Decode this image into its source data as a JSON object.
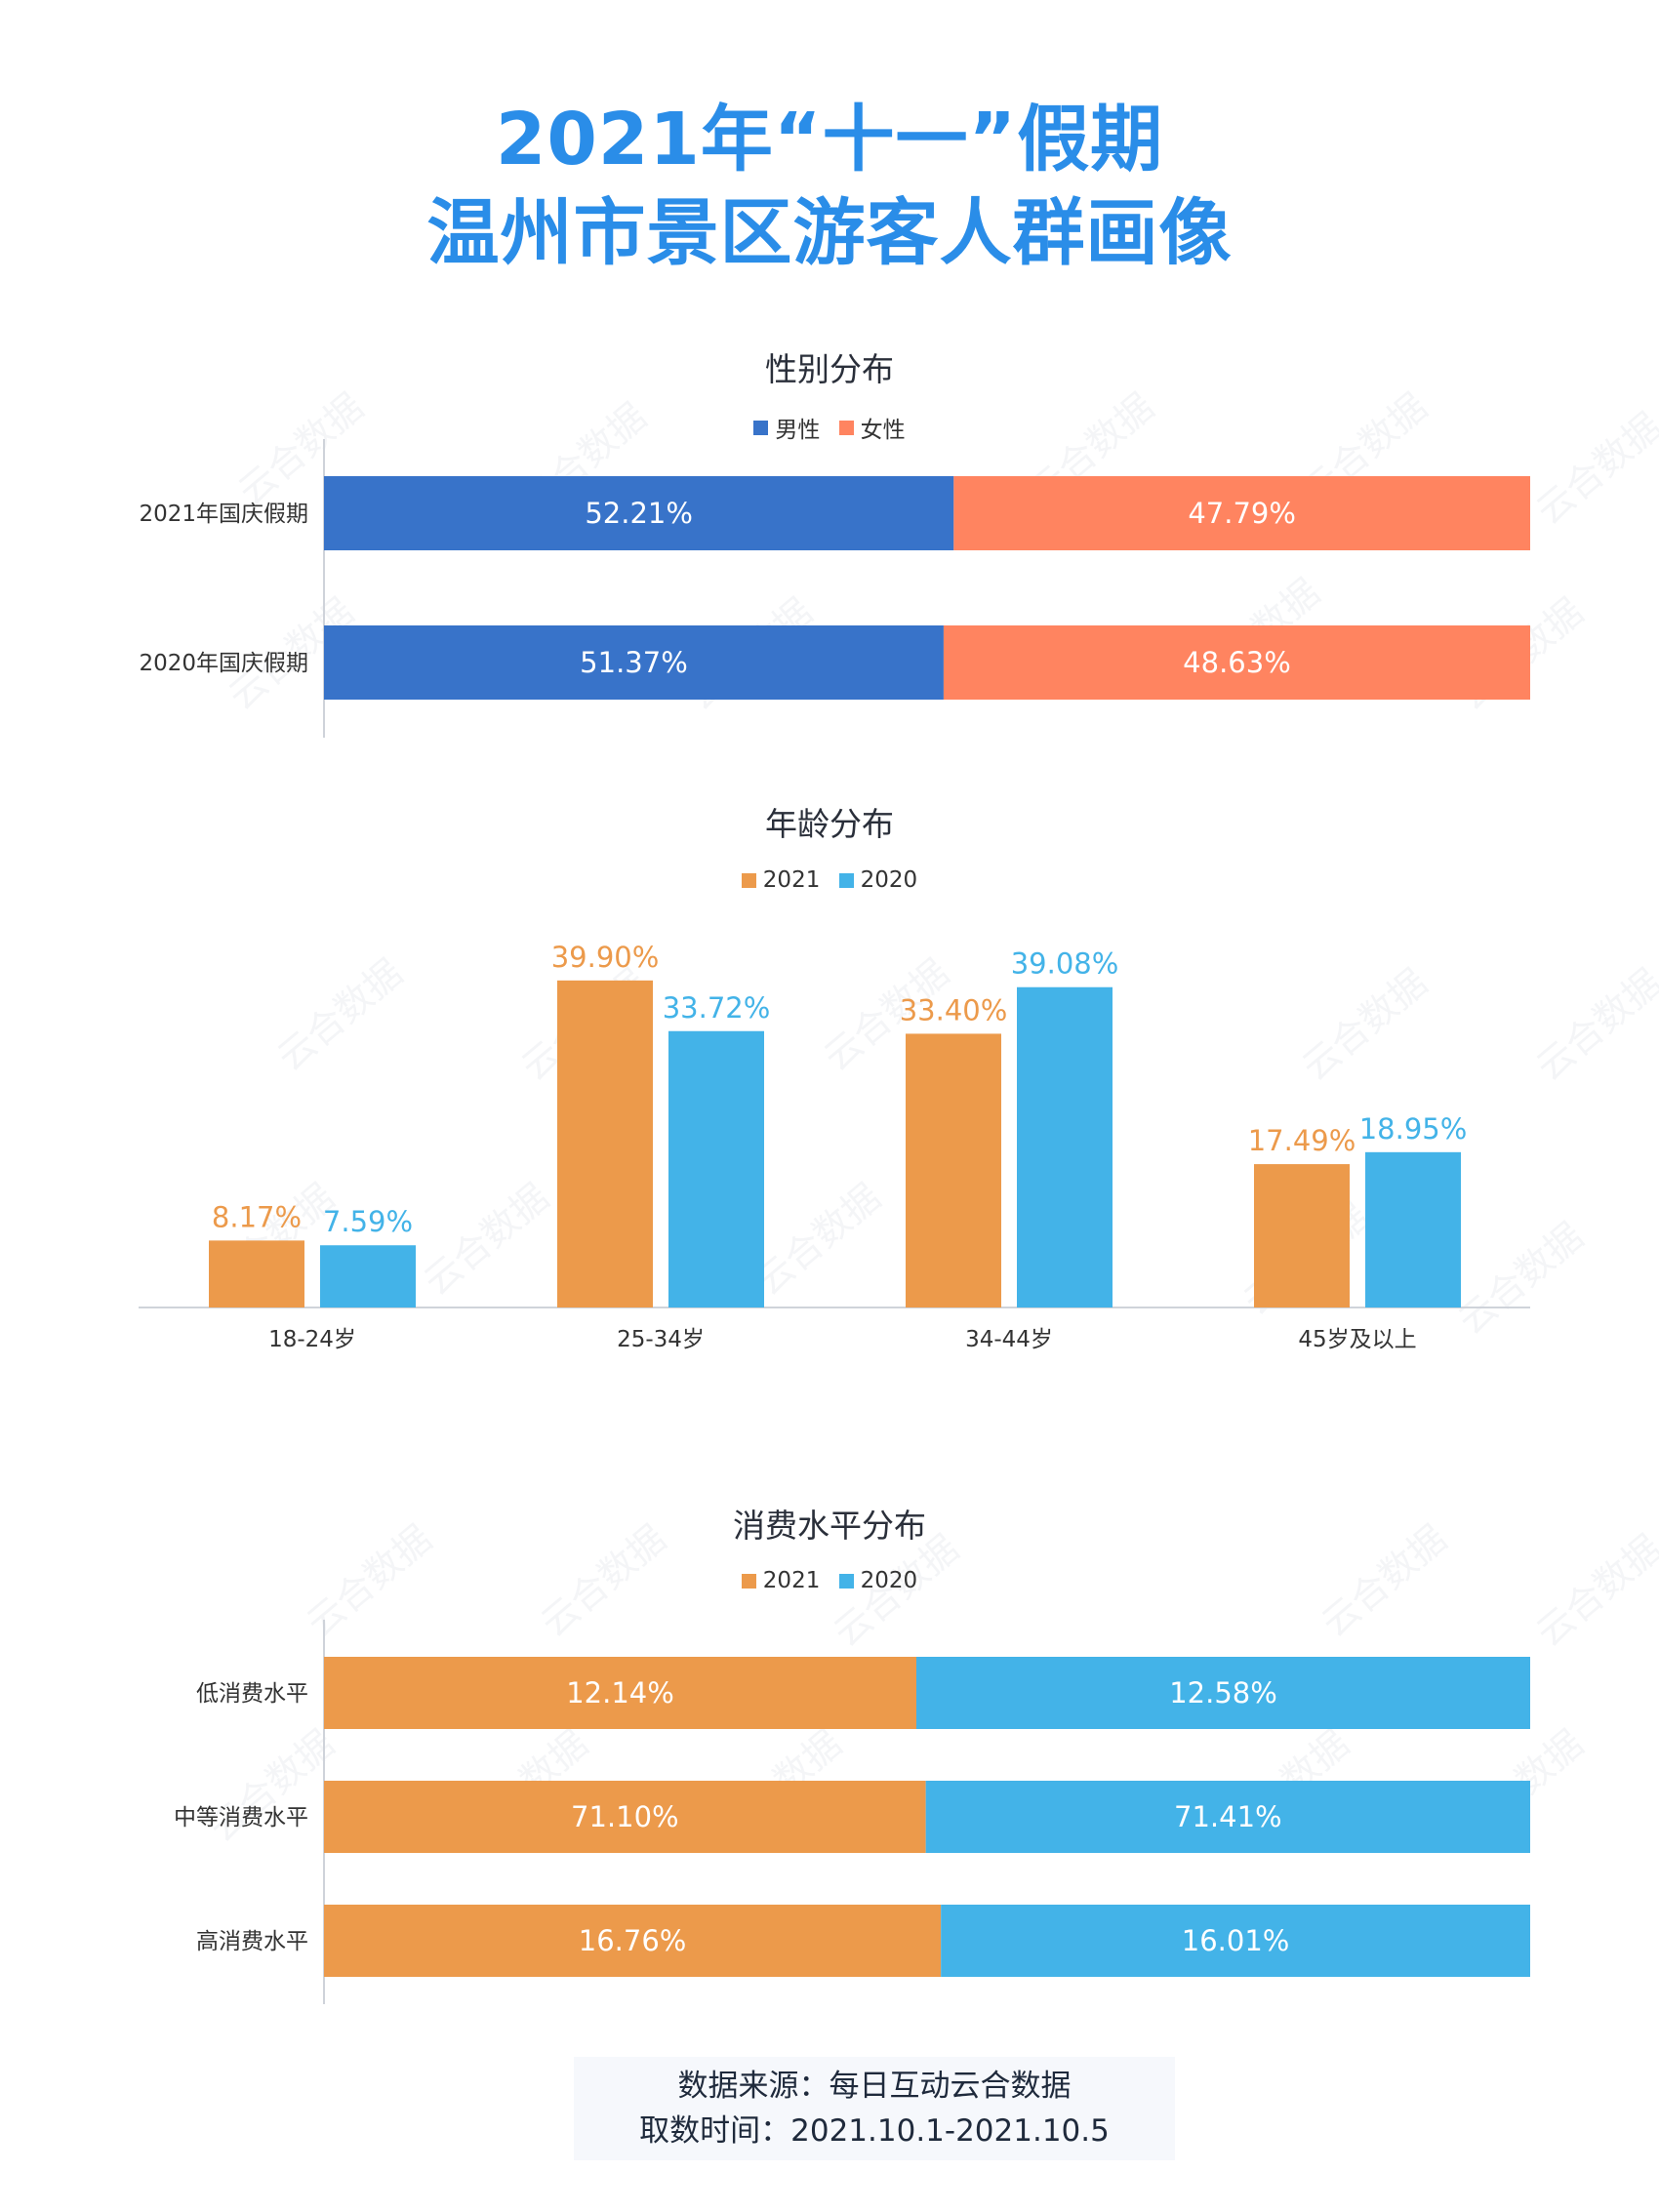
{
  "title": {
    "line1": "2021年“十一”假期",
    "line2": "温州市景区游客人群画像"
  },
  "watermark_text": "云合数据",
  "source": {
    "line1": "数据来源：每日互动云合数据",
    "line2": "取数时间：2021.10.1-2021.10.5"
  },
  "colors": {
    "title": "#2a8de8",
    "male": "#3873c9",
    "female": "#ff8460",
    "y2021": "#ec9a4b",
    "y2020": "#43b3e8"
  },
  "chart_data": [
    {
      "type": "bar",
      "orientation": "horizontal",
      "stacked": true,
      "title": "性别分布",
      "categories": [
        "2021年国庆假期",
        "2020年国庆假期"
      ],
      "series": [
        {
          "name": "男性",
          "values": [
            52.21,
            51.37
          ],
          "labels": [
            "52.21%",
            "51.37%"
          ]
        },
        {
          "name": "女性",
          "values": [
            47.79,
            48.63
          ],
          "labels": [
            "47.79%",
            "48.63%"
          ]
        }
      ],
      "legend": "top-center",
      "grid": false
    },
    {
      "type": "bar",
      "orientation": "vertical",
      "title": "年龄分布",
      "categories": [
        "18-24岁",
        "25-34岁",
        "34-44岁",
        "45岁及以上"
      ],
      "series": [
        {
          "name": "2021",
          "values": [
            8.17,
            39.9,
            33.4,
            17.49
          ],
          "labels": [
            "8.17%",
            "39.90%",
            "33.40%",
            "17.49%"
          ]
        },
        {
          "name": "2020",
          "values": [
            7.59,
            33.72,
            39.08,
            18.95
          ],
          "labels": [
            "7.59%",
            "33.72%",
            "39.08%",
            "18.95%"
          ]
        }
      ],
      "ylim": [
        0,
        45
      ],
      "legend": "top-center",
      "grid": false
    },
    {
      "type": "bar",
      "orientation": "horizontal",
      "stacked": true,
      "normalized": true,
      "title": "消费水平分布",
      "categories": [
        "低消费水平",
        "中等消费水平",
        "高消费水平"
      ],
      "series": [
        {
          "name": "2021",
          "values": [
            12.14,
            71.1,
            16.76
          ],
          "labels": [
            "12.14%",
            "71.10%",
            "16.76%"
          ]
        },
        {
          "name": "2020",
          "values": [
            12.58,
            71.41,
            16.01
          ],
          "labels": [
            "12.58%",
            "71.41%",
            "16.01%"
          ]
        }
      ],
      "legend": "top-center",
      "grid": false
    }
  ]
}
